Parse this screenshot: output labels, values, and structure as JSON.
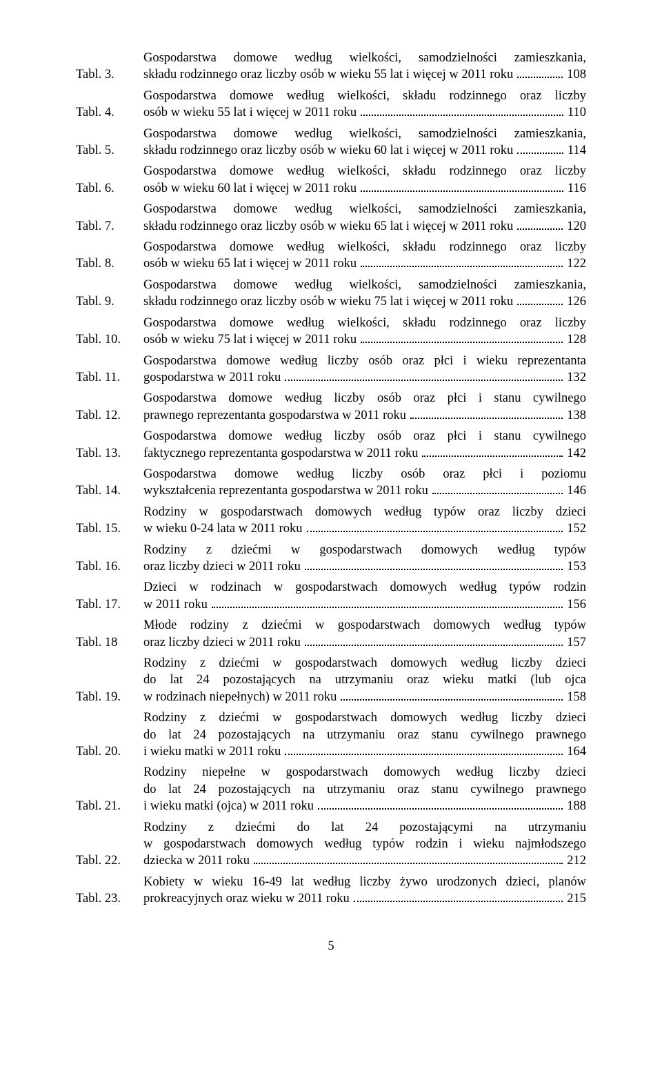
{
  "entries": [
    {
      "label": "Tabl. 3.",
      "lines": [
        "Gospodarstwa domowe według wielkości, samodzielności zamieszkania,"
      ],
      "tail": "składu rodzinnego oraz liczby osób w wieku 55 lat i więcej w 2011 roku",
      "page": "108"
    },
    {
      "label": "Tabl. 4.",
      "lines": [
        "Gospodarstwa domowe według wielkości, składu rodzinnego oraz liczby"
      ],
      "tail": "osób w wieku 55 lat i więcej w 2011 roku",
      "page": "110"
    },
    {
      "label": "Tabl. 5.",
      "lines": [
        "Gospodarstwa domowe według wielkości, samodzielności zamieszkania,"
      ],
      "tail": "składu rodzinnego oraz liczby osób w wieku 60 lat i więcej w 2011 roku",
      "page": "114"
    },
    {
      "label": "Tabl. 6.",
      "lines": [
        "Gospodarstwa domowe według wielkości, składu rodzinnego oraz liczby"
      ],
      "tail": "osób w wieku 60 lat i więcej w 2011 roku",
      "page": "116"
    },
    {
      "label": "Tabl. 7.",
      "lines": [
        "Gospodarstwa domowe według wielkości, samodzielności zamieszkania,"
      ],
      "tail": "składu rodzinnego oraz liczby osób w wieku 65 lat i więcej w 2011 roku",
      "page": "120"
    },
    {
      "label": "Tabl. 8.",
      "lines": [
        "Gospodarstwa domowe według wielkości, składu rodzinnego oraz liczby"
      ],
      "tail": "osób w wieku 65 lat i więcej w 2011 roku",
      "page": "122"
    },
    {
      "label": "Tabl. 9.",
      "lines": [
        "Gospodarstwa domowe według wielkości, samodzielności zamieszkania,"
      ],
      "tail": "składu rodzinnego oraz liczby osób w wieku 75 lat i więcej w 2011 roku",
      "page": "126"
    },
    {
      "label": "Tabl. 10.",
      "lines": [
        "Gospodarstwa domowe według wielkości, składu rodzinnego oraz liczby"
      ],
      "tail": "osób w wieku 75 lat i więcej w 2011 roku",
      "page": "128"
    },
    {
      "label": "Tabl. 11.",
      "lines": [
        "Gospodarstwa domowe według liczby osób oraz płci i wieku reprezentanta"
      ],
      "tail": "gospodarstwa w 2011 roku",
      "page": "132"
    },
    {
      "label": "Tabl. 12.",
      "lines": [
        "Gospodarstwa domowe według liczby osób oraz płci i stanu cywilnego"
      ],
      "tail": "prawnego reprezentanta gospodarstwa w 2011 roku",
      "page": "138"
    },
    {
      "label": "Tabl. 13.",
      "lines": [
        "Gospodarstwa domowe według liczby osób oraz płci i stanu cywilnego"
      ],
      "tail": "faktycznego reprezentanta gospodarstwa w 2011 roku",
      "page": "142"
    },
    {
      "label": "Tabl. 14.",
      "lines": [
        "Gospodarstwa domowe według liczby osób oraz płci i poziomu"
      ],
      "tail": "wykształcenia reprezentanta gospodarstwa w 2011 roku",
      "page": "146"
    },
    {
      "label": "Tabl. 15.",
      "lines": [
        "Rodziny w gospodarstwach domowych według typów oraz liczby dzieci"
      ],
      "tail": "w wieku 0-24 lata w 2011 roku",
      "page": "152"
    },
    {
      "label": "Tabl. 16.",
      "lines": [
        "Rodziny z dziećmi w gospodarstwach domowych według typów"
      ],
      "tail": "oraz liczby dzieci w 2011 roku",
      "page": "153"
    },
    {
      "label": "Tabl. 17.",
      "lines": [
        "Dzieci w rodzinach w gospodarstwach domowych według typów rodzin"
      ],
      "tail": "w 2011 roku",
      "page": "156"
    },
    {
      "label": "Tabl. 18",
      "lines": [
        "Młode rodziny z dziećmi w gospodarstwach domowych według typów"
      ],
      "tail": "oraz liczby dzieci w 2011 roku",
      "page": "157"
    },
    {
      "label": "Tabl. 19.",
      "lines": [
        "Rodziny z dziećmi w gospodarstwach domowych według liczby dzieci",
        "do lat 24 pozostających na utrzymaniu oraz wieku matki (lub ojca"
      ],
      "tail": "w rodzinach niepełnych) w 2011 roku",
      "page": "158"
    },
    {
      "label": "Tabl. 20.",
      "lines": [
        "Rodziny z dziećmi w gospodarstwach domowych według liczby dzieci",
        "do lat 24 pozostających na utrzymaniu oraz stanu cywilnego prawnego"
      ],
      "tail": "i wieku matki w 2011 roku",
      "page": "164"
    },
    {
      "label": "Tabl. 21.",
      "lines": [
        "Rodziny niepełne w gospodarstwach domowych według liczby dzieci",
        "do lat 24 pozostających na utrzymaniu oraz stanu cywilnego prawnego"
      ],
      "tail": "i wieku matki (ojca) w 2011 roku",
      "page": "188"
    },
    {
      "label": "Tabl. 22.",
      "lines": [
        "Rodziny z dziećmi do lat 24 pozostającymi na utrzymaniu",
        "w gospodarstwach domowych według typów rodzin i wieku najmłodszego"
      ],
      "tail": "dziecka w 2011 roku",
      "page": "212"
    },
    {
      "label": "Tabl. 23.",
      "lines": [
        "Kobiety w wieku 16-49 lat według liczby żywo urodzonych dzieci, planów"
      ],
      "tail": "prokreacyjnych oraz wieku w 2011 roku",
      "page": "215"
    }
  ],
  "footer": "5"
}
